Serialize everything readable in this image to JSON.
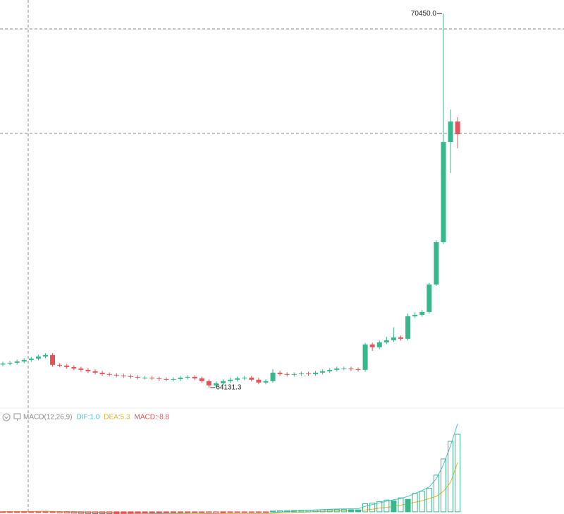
{
  "chart_data": [
    {
      "type": "candlestick",
      "ylim": [
        63820,
        70680
      ],
      "up_color": "#35b88c",
      "down_color": "#e25457",
      "max_label": "70450.0",
      "min_label": "64131.3",
      "open": [
        64520,
        64538,
        64550,
        64573,
        64597,
        64621,
        64657,
        64681,
        64514,
        64502,
        64478,
        64454,
        64430,
        64407,
        64383,
        64359,
        64347,
        64335,
        64323,
        64311,
        64299,
        64299,
        64287,
        64275,
        64264,
        64275,
        64299,
        64311,
        64287,
        64240,
        64168,
        64204,
        64240,
        64264,
        64287,
        64299,
        64264,
        64216,
        64240,
        64383,
        64359,
        64347,
        64359,
        64371,
        64359,
        64383,
        64407,
        64430,
        64454,
        64454,
        64442,
        64430,
        64860,
        64812,
        64895,
        64931,
        64979,
        64955,
        65336,
        65360,
        65408,
        65873,
        66588,
        68281,
        68626
      ],
      "high": [
        64568,
        64580,
        64603,
        64627,
        64651,
        64687,
        64711,
        64711,
        64544,
        64532,
        64508,
        64484,
        64460,
        64437,
        64413,
        64389,
        64377,
        64365,
        64353,
        64341,
        64329,
        64329,
        64317,
        64305,
        64305,
        64329,
        64341,
        64341,
        64317,
        64270,
        64234,
        64270,
        64294,
        64317,
        64329,
        64329,
        64294,
        64270,
        64440,
        64413,
        64389,
        64389,
        64401,
        64401,
        64413,
        64437,
        64460,
        64484,
        64484,
        64484,
        64472,
        64890,
        64890,
        64925,
        64990,
        65150,
        65010,
        65380,
        65400,
        65440,
        65900,
        66620,
        70450,
        68829,
        68700
      ],
      "low": [
        64490,
        64508,
        64520,
        64543,
        64567,
        64591,
        64627,
        64484,
        64472,
        64448,
        64424,
        64400,
        64377,
        64353,
        64329,
        64317,
        64305,
        64293,
        64281,
        64269,
        64269,
        64257,
        64245,
        64234,
        64234,
        64245,
        64269,
        64257,
        64210,
        64131.3,
        64138,
        64174,
        64210,
        64234,
        64257,
        64234,
        64186,
        64186,
        64210,
        64329,
        64317,
        64317,
        64329,
        64329,
        64329,
        64353,
        64377,
        64400,
        64424,
        64412,
        64400,
        64400,
        64750,
        64780,
        64865,
        64900,
        64925,
        64925,
        65306,
        65330,
        65380,
        65850,
        66560,
        67756,
        68173
      ],
      "close": [
        64538,
        64550,
        64573,
        64597,
        64621,
        64657,
        64681,
        64514,
        64502,
        64478,
        64454,
        64430,
        64407,
        64383,
        64359,
        64347,
        64335,
        64323,
        64311,
        64299,
        64299,
        64287,
        64275,
        64264,
        64275,
        64299,
        64311,
        64287,
        64240,
        64168,
        64204,
        64240,
        64264,
        64287,
        64299,
        64264,
        64216,
        64240,
        64383,
        64359,
        64347,
        64359,
        64371,
        64359,
        64383,
        64407,
        64430,
        64454,
        64454,
        64442,
        64430,
        64860,
        64812,
        64895,
        64931,
        64979,
        64955,
        65336,
        65360,
        65408,
        65873,
        66588,
        68281,
        68626,
        68412
      ]
    },
    {
      "type": "macd",
      "title": "MACD(12,26,9)",
      "ylim": [
        -30,
        1220
      ],
      "up_color": "#35b88c",
      "down_color": "#e25457",
      "series": [
        {
          "name": "DIF:1.0",
          "color": "#4cc3cc",
          "values": [
            1,
            1,
            2,
            3,
            4,
            6,
            8,
            4,
            0,
            -3,
            -6,
            -9,
            -12,
            -14,
            -16,
            -18,
            -19,
            -20,
            -21,
            -22,
            -23,
            -24,
            -25,
            -26,
            -26,
            -25,
            -24,
            -23,
            -24,
            -27,
            -32,
            -33,
            -32,
            -30,
            -28,
            -26,
            -26,
            -26,
            -12,
            -3,
            4,
            10,
            15,
            20,
            25,
            30,
            35,
            38,
            40,
            41,
            41,
            75,
            98,
            122,
            145,
            165,
            180,
            210,
            250,
            290,
            340,
            450,
            640,
            900,
            1200
          ]
        },
        {
          "name": "DEA:5.3",
          "color": "#eeb424",
          "values": [
            4,
            4,
            4,
            5.3,
            5,
            5,
            6,
            5,
            4,
            3,
            2,
            0,
            -2,
            -4,
            -6,
            -8,
            -9,
            -11,
            -12,
            -13,
            -14,
            -15,
            -16,
            -17,
            -18,
            -19,
            -19,
            -19,
            -20,
            -20,
            -22,
            -24,
            -25,
            -26,
            -26,
            -26,
            -26,
            -26,
            -22,
            -18,
            -14,
            -10,
            -6,
            -2,
            2,
            5,
            9,
            12,
            15,
            18,
            20,
            25,
            35,
            50,
            60,
            75,
            90,
            110,
            130,
            150,
            180,
            210,
            280,
            400,
            672
          ]
        },
        {
          "name": "MACD:-8.8",
          "color": "#e25457",
          "type": "histogram",
          "values": [
            -5,
            -8,
            -9,
            -8,
            -6,
            -4,
            -2,
            -10,
            -15,
            -18,
            -20,
            -22,
            -24,
            -25,
            -26,
            -26,
            -25,
            -24,
            -23,
            -22,
            -20,
            -18,
            -16,
            -14,
            -12,
            -10,
            -8,
            -8,
            -10,
            -14,
            -18,
            -14,
            -10,
            -6,
            -4,
            -3,
            -5,
            -6,
            10,
            14,
            16,
            18,
            20,
            22,
            24,
            26,
            28,
            30,
            30,
            28,
            26,
            110,
            120,
            140,
            160,
            150,
            190,
            170,
            250,
            280,
            320,
            500,
            720,
            960,
            1056
          ]
        }
      ]
    }
  ]
}
